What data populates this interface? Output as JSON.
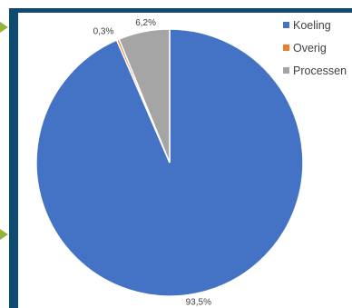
{
  "chart_data": {
    "type": "pie",
    "categories": [
      "Koeling",
      "Overig",
      "Processen"
    ],
    "values": [
      93.5,
      0.3,
      6.2
    ],
    "labels": [
      "93,5%",
      "0,3%",
      "6,2%"
    ],
    "colors": [
      "#4472c4",
      "#ed7d31",
      "#a5a5a5"
    ],
    "title": "",
    "legend": "right"
  }
}
